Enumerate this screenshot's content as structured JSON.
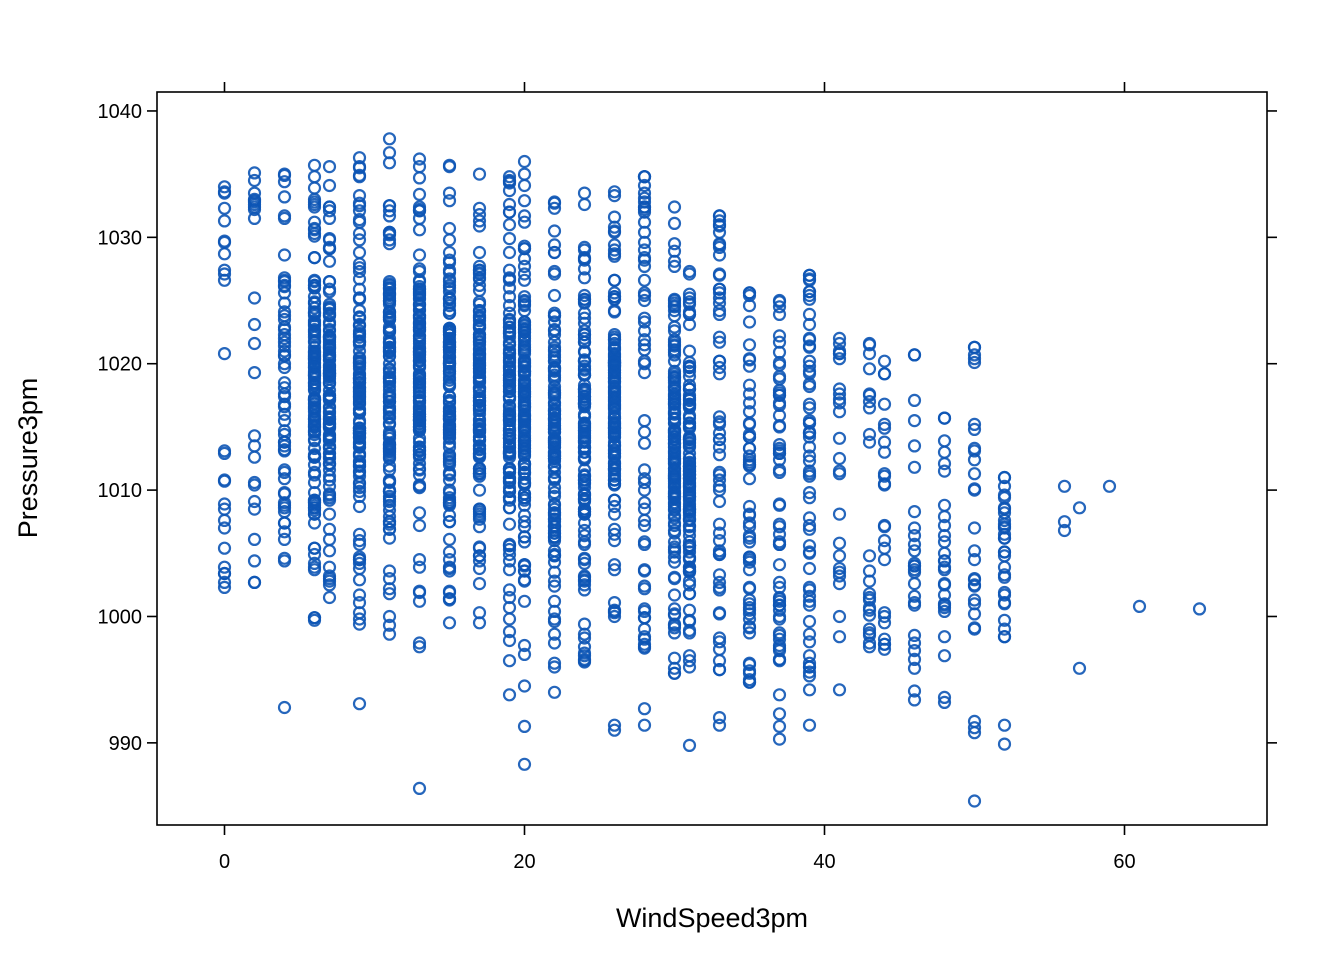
{
  "chart_data": {
    "type": "scatter",
    "xlabel": "WindSpeed3pm",
    "ylabel": "Pressure3pm",
    "xlim": [
      -4.5,
      69.5
    ],
    "ylim": [
      983.5,
      1041.5
    ],
    "xticks": [
      0,
      20,
      40,
      60
    ],
    "yticks": [
      990,
      1000,
      1010,
      1020,
      1030,
      1040
    ],
    "marker": "open-circle",
    "point_color": "#0D55B5",
    "grid": false,
    "legend": "none",
    "columns": [
      {
        "x": 0,
        "min": 1002.3,
        "max": 1034.0,
        "density": "sparse"
      },
      {
        "x": 2,
        "min": 1002.7,
        "max": 1035.1,
        "density": "sparse"
      },
      {
        "x": 4,
        "min": 1004.4,
        "max": 1035.0,
        "density": "medium"
      },
      {
        "x": 6,
        "min": 999.7,
        "max": 1035.7,
        "density": "dense"
      },
      {
        "x": 7,
        "min": 1001.5,
        "max": 1035.6,
        "density": "dense"
      },
      {
        "x": 9,
        "min": 999.4,
        "max": 1036.3,
        "density": "dense"
      },
      {
        "x": 11,
        "min": 998.6,
        "max": 1037.8,
        "density": "dense"
      },
      {
        "x": 13,
        "min": 1001.2,
        "max": 1036.2,
        "density": "dense"
      },
      {
        "x": 15,
        "min": 999.5,
        "max": 1035.7,
        "density": "dense"
      },
      {
        "x": 17,
        "min": 999.5,
        "max": 1035.0,
        "density": "dense"
      },
      {
        "x": 19,
        "min": 996.5,
        "max": 1034.8,
        "density": "dense"
      },
      {
        "x": 20,
        "min": 997.0,
        "max": 1036.0,
        "density": "dense"
      },
      {
        "x": 22,
        "min": 996.0,
        "max": 1032.8,
        "density": "dense"
      },
      {
        "x": 24,
        "min": 996.4,
        "max": 1033.5,
        "density": "dense"
      },
      {
        "x": 26,
        "min": 1000.0,
        "max": 1033.6,
        "density": "dense"
      },
      {
        "x": 28,
        "min": 997.5,
        "max": 1034.8,
        "density": "medium"
      },
      {
        "x": 30,
        "min": 995.5,
        "max": 1032.4,
        "density": "dense"
      },
      {
        "x": 31,
        "min": 996.0,
        "max": 1027.3,
        "density": "dense"
      },
      {
        "x": 33,
        "min": 995.8,
        "max": 1031.7,
        "density": "medium"
      },
      {
        "x": 35,
        "min": 994.8,
        "max": 1025.6,
        "density": "medium"
      },
      {
        "x": 37,
        "min": 996.5,
        "max": 1025.0,
        "density": "medium"
      },
      {
        "x": 39,
        "min": 995.3,
        "max": 1027.0,
        "density": "medium"
      },
      {
        "x": 41,
        "min": 998.4,
        "max": 1022.0,
        "density": "sparse"
      },
      {
        "x": 43,
        "min": 997.6,
        "max": 1021.6,
        "density": "sparse"
      },
      {
        "x": 44,
        "min": 997.4,
        "max": 1020.2,
        "density": "sparse"
      },
      {
        "x": 46,
        "min": 995.9,
        "max": 1020.7,
        "density": "sparse"
      },
      {
        "x": 48,
        "min": 996.9,
        "max": 1015.7,
        "density": "sparse"
      },
      {
        "x": 50,
        "min": 999.0,
        "max": 1021.3,
        "density": "sparse"
      },
      {
        "x": 52,
        "min": 998.4,
        "max": 1011.0,
        "density": "sparse"
      }
    ],
    "points": [
      [
        4,
        992.8
      ],
      [
        9,
        993.1
      ],
      [
        13,
        986.4
      ],
      [
        13,
        997.6
      ],
      [
        13,
        997.9
      ],
      [
        19,
        993.8
      ],
      [
        20,
        988.3
      ],
      [
        20,
        991.3
      ],
      [
        20,
        994.5
      ],
      [
        22,
        994.0
      ],
      [
        24,
        997.1
      ],
      [
        26,
        991.0
      ],
      [
        26,
        991.4
      ],
      [
        28,
        991.4
      ],
      [
        28,
        992.7
      ],
      [
        30,
        995.5
      ],
      [
        31,
        989.8
      ],
      [
        33,
        991.4
      ],
      [
        33,
        992.0
      ],
      [
        35,
        994.8
      ],
      [
        37,
        990.3
      ],
      [
        37,
        991.3
      ],
      [
        37,
        992.3
      ],
      [
        37,
        993.8
      ],
      [
        39,
        991.4
      ],
      [
        39,
        994.2
      ],
      [
        41,
        994.2
      ],
      [
        46,
        993.4
      ],
      [
        46,
        994.1
      ],
      [
        48,
        993.2
      ],
      [
        48,
        993.6
      ],
      [
        50,
        985.4
      ],
      [
        50,
        990.8
      ],
      [
        50,
        991.2
      ],
      [
        50,
        991.7
      ],
      [
        52,
        989.9
      ],
      [
        52,
        991.4
      ],
      [
        52,
        998.4
      ],
      [
        52,
        999.0
      ],
      [
        52,
        1005.1
      ],
      [
        52,
        1010.3
      ],
      [
        52,
        1011.0
      ],
      [
        56,
        1010.3
      ],
      [
        56,
        1007.5
      ],
      [
        56,
        1006.8
      ],
      [
        57,
        1008.6
      ],
      [
        57,
        995.9
      ],
      [
        59,
        1010.3
      ],
      [
        61,
        1000.8
      ],
      [
        65,
        1000.6
      ],
      [
        28,
        1034.8
      ],
      [
        33,
        1031.7
      ],
      [
        39,
        1027.0
      ],
      [
        50,
        1021.3
      ],
      [
        46,
        1020.7
      ],
      [
        48,
        1015.7
      ],
      [
        0,
        1033.6
      ],
      [
        0,
        1029.6
      ],
      [
        2,
        1002.7
      ],
      [
        4,
        1004.6
      ]
    ]
  }
}
